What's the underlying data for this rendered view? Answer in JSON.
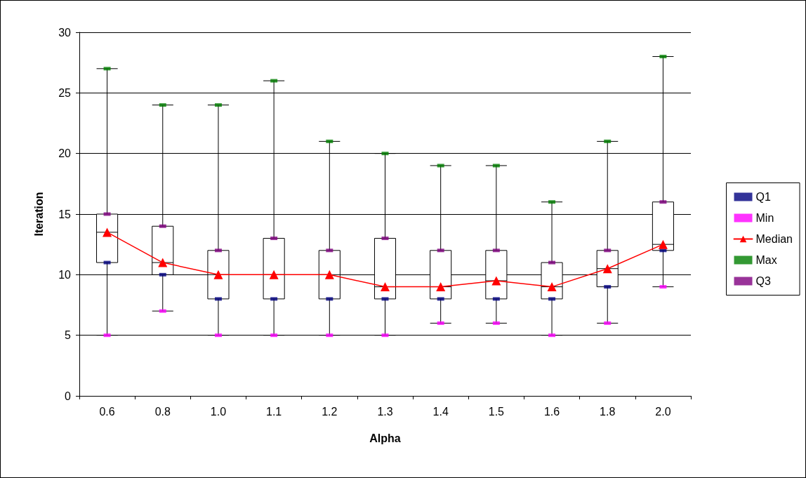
{
  "chart_data": {
    "type": "box",
    "xlabel": "Alpha",
    "ylabel": "Iteration",
    "categories": [
      "0.6",
      "0.8",
      "1.0",
      "1.1",
      "1.2",
      "1.3",
      "1.4",
      "1.5",
      "1.6",
      "1.8",
      "2.0"
    ],
    "boxes": [
      {
        "low": 5,
        "q1": 11,
        "median": 13.5,
        "q3": 15,
        "high": 27
      },
      {
        "low": 7,
        "q1": 10,
        "median": 11,
        "q3": 14,
        "high": 24
      },
      {
        "low": 5,
        "q1": 8,
        "median": 10,
        "q3": 12,
        "high": 24
      },
      {
        "low": 5,
        "q1": 8,
        "median": 10,
        "q3": 13,
        "high": 26
      },
      {
        "low": 5,
        "q1": 8,
        "median": 10,
        "q3": 12,
        "high": 21
      },
      {
        "low": 5,
        "q1": 8,
        "median": 9,
        "q3": 13,
        "high": 20
      },
      {
        "low": 6,
        "q1": 8,
        "median": 9,
        "q3": 12,
        "high": 19
      },
      {
        "low": 6,
        "q1": 8,
        "median": 9.5,
        "q3": 12,
        "high": 19
      },
      {
        "low": 5,
        "q1": 8,
        "median": 9,
        "q3": 11,
        "high": 16
      },
      {
        "low": 6,
        "q1": 9,
        "median": 10.5,
        "q3": 12,
        "high": 21
      },
      {
        "low": 9,
        "q1": 12,
        "median": 12.5,
        "q3": 16,
        "high": 28
      }
    ],
    "series": [
      {
        "name": "Q1",
        "type": "scatter",
        "color": "#000080",
        "values": [
          11,
          10,
          8,
          8,
          8,
          8,
          8,
          8,
          8,
          9,
          12
        ]
      },
      {
        "name": "Min",
        "type": "scatter",
        "color": "#ff00ff",
        "values": [
          5,
          7,
          5,
          5,
          5,
          5,
          6,
          6,
          5,
          6,
          9
        ]
      },
      {
        "name": "Median",
        "type": "line",
        "marker": "triangle",
        "color": "#ff0000",
        "values": [
          13.5,
          11,
          10,
          10,
          10,
          9,
          9,
          9.5,
          9,
          10.5,
          12.5
        ]
      },
      {
        "name": "Max",
        "type": "scatter",
        "color": "#008000",
        "values": [
          27,
          24,
          24,
          26,
          21,
          20,
          19,
          19,
          16,
          21,
          28
        ]
      },
      {
        "name": "Q3",
        "type": "scatter",
        "color": "#800080",
        "values": [
          15,
          14,
          12,
          13,
          12,
          13,
          12,
          12,
          11,
          12,
          16
        ]
      }
    ],
    "ylim": [
      0,
      30
    ],
    "yticks": [
      0,
      5,
      10,
      15,
      20,
      25,
      30
    ],
    "grid": "y",
    "legend": "right"
  }
}
